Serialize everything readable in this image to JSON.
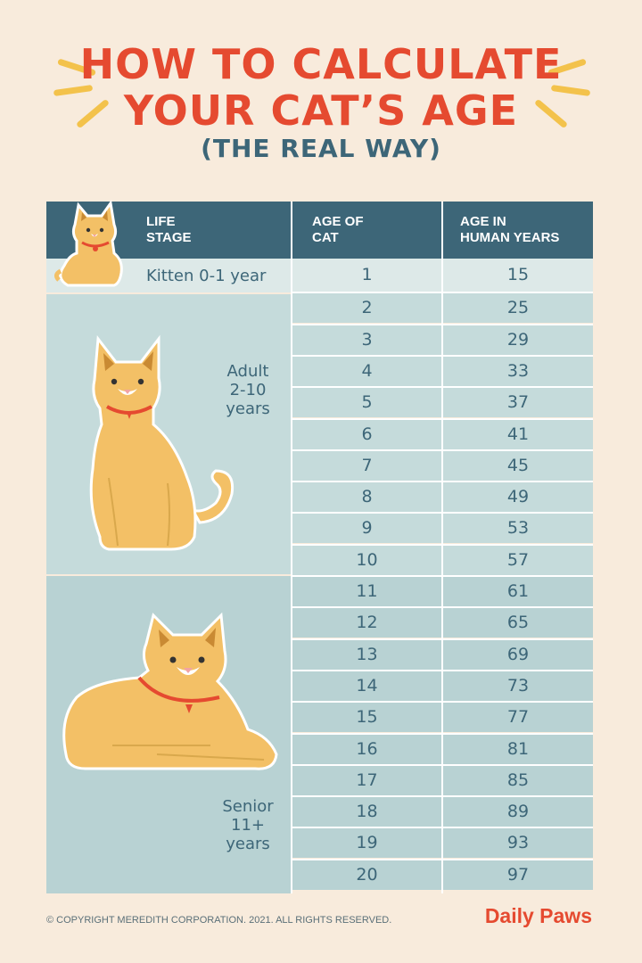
{
  "title": {
    "line1": "HOW TO CALCULATE",
    "line2": "YOUR CAT’S AGE",
    "subtitle": "(THE REAL WAY)"
  },
  "table": {
    "headers": {
      "life_stage": "LIFE\nSTAGE",
      "age_of_cat": "AGE OF\nCAT",
      "human_years": "AGE IN\nHUMAN YEARS"
    },
    "stages": {
      "kitten": "Kitten 0-1 year",
      "adult": "Adult\n2-10\nyears",
      "senior": "Senior\n11+\nyears"
    },
    "rows": [
      {
        "cat": "1",
        "human": "15"
      },
      {
        "cat": "2",
        "human": "25"
      },
      {
        "cat": "3",
        "human": "29"
      },
      {
        "cat": "4",
        "human": "33"
      },
      {
        "cat": "5",
        "human": "37"
      },
      {
        "cat": "6",
        "human": "41"
      },
      {
        "cat": "7",
        "human": "45"
      },
      {
        "cat": "8",
        "human": "49"
      },
      {
        "cat": "9",
        "human": "53"
      },
      {
        "cat": "10",
        "human": "57"
      },
      {
        "cat": "11",
        "human": "61"
      },
      {
        "cat": "12",
        "human": "65"
      },
      {
        "cat": "13",
        "human": "69"
      },
      {
        "cat": "14",
        "human": "73"
      },
      {
        "cat": "15",
        "human": "77"
      },
      {
        "cat": "16",
        "human": "81"
      },
      {
        "cat": "17",
        "human": "85"
      },
      {
        "cat": "18",
        "human": "89"
      },
      {
        "cat": "19",
        "human": "93"
      },
      {
        "cat": "20",
        "human": "97"
      }
    ]
  },
  "footer": {
    "copyright": "© COPYRIGHT MEREDITH CORPORATION. 2021. ALL RIGHTS RESERVED.",
    "brand": "Daily Paws"
  },
  "colors": {
    "title": "#e54a30",
    "header_bg": "#3d6678",
    "text": "#3d6678",
    "adult_bg": "#c5dbdb",
    "senior_bg": "#b8d2d3",
    "cat_fur": "#f3c066"
  }
}
